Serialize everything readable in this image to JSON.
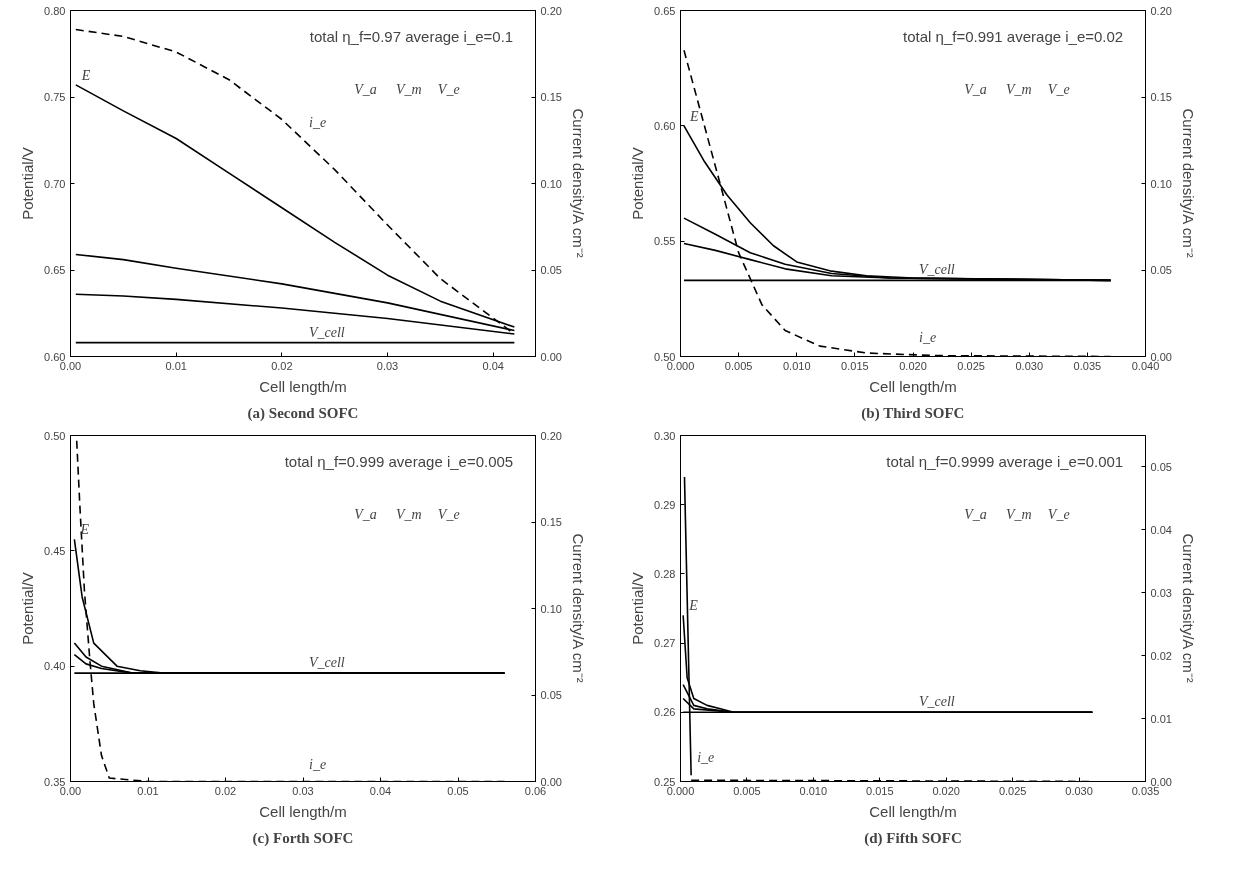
{
  "chart_data": [
    {
      "type": "line",
      "title": "(a) Second SOFC",
      "xlabel": "Cell length/m",
      "ylabel": "Potential/V",
      "y2label": "Current density/A cm⁻²",
      "grid": false,
      "annotations": [
        "total η_f=0.97   average i_e=0.1",
        "V_a",
        "V_m",
        "V_e"
      ],
      "xlim": [
        0,
        0.044
      ],
      "xticks": [
        {
          "value": 0,
          "label": "0.00"
        },
        {
          "value": 0.01,
          "label": "0.01"
        },
        {
          "value": 0.02,
          "label": "0.02"
        },
        {
          "value": 0.03,
          "label": "0.03"
        },
        {
          "value": 0.04,
          "label": "0.04"
        }
      ],
      "ylim": [
        0.6,
        0.8
      ],
      "yticks": [
        {
          "value": 0.6,
          "label": "0.60"
        },
        {
          "value": 0.65,
          "label": "0.65"
        },
        {
          "value": 0.7,
          "label": "0.70"
        },
        {
          "value": 0.75,
          "label": "0.75"
        },
        {
          "value": 0.8,
          "label": "0.80"
        }
      ],
      "y2lim": [
        0,
        0.2
      ],
      "y2ticks": [
        {
          "value": 0,
          "label": "0.00"
        },
        {
          "value": 0.05,
          "label": "0.05"
        },
        {
          "value": 0.1,
          "label": "0.10"
        },
        {
          "value": 0.15,
          "label": "0.15"
        },
        {
          "value": 0.2,
          "label": "0.20"
        }
      ],
      "series": [
        {
          "name": "E",
          "color": "#000000",
          "line_style": "solid",
          "x": [
            0.0005,
            0.005,
            0.01,
            0.015,
            0.02,
            0.025,
            0.03,
            0.035,
            0.042
          ],
          "values": [
            0.757,
            0.742,
            0.726,
            0.706,
            0.686,
            0.666,
            0.647,
            0.632,
            0.617
          ]
        },
        {
          "type": "line",
          "color": "#000000",
          "line_style": "solid",
          "x": [
            0.0005,
            0.005,
            0.01,
            0.02,
            0.03,
            0.042
          ],
          "values": [
            0.659,
            0.656,
            0.651,
            0.642,
            0.631,
            0.615
          ]
        },
        {
          "type": "line",
          "color": "#000000",
          "line_style": "solid",
          "x": [
            0.0005,
            0.005,
            0.01,
            0.02,
            0.03,
            0.042
          ],
          "values": [
            0.636,
            0.635,
            0.633,
            0.628,
            0.622,
            0.613
          ]
        },
        {
          "name": "V_cell",
          "color": "#000000",
          "line_style": "solid",
          "x": [
            0.0005,
            0.042
          ],
          "values": [
            0.608,
            0.608
          ]
        },
        {
          "name": "i_e",
          "color": "#000000",
          "line_style": "dashed",
          "axis": "y2",
          "x": [
            0.0005,
            0.005,
            0.01,
            0.015,
            0.02,
            0.025,
            0.03,
            0.035,
            0.042
          ],
          "values": [
            0.189,
            0.185,
            0.176,
            0.16,
            0.137,
            0.108,
            0.076,
            0.045,
            0.013
          ]
        }
      ]
    },
    {
      "type": "line",
      "title": "(b) Third SOFC",
      "xlabel": "Cell length/m",
      "ylabel": "Potential/V",
      "y2label": "Current density/A cm⁻²",
      "grid": false,
      "annotations": [
        "total η_f=0.991   average i_e=0.02",
        "V_a",
        "V_m",
        "V_e"
      ],
      "xlim": [
        0,
        0.04
      ],
      "xticks": [
        {
          "value": 0,
          "label": "0.000"
        },
        {
          "value": 0.005,
          "label": "0.005"
        },
        {
          "value": 0.01,
          "label": "0.010"
        },
        {
          "value": 0.015,
          "label": "0.015"
        },
        {
          "value": 0.02,
          "label": "0.020"
        },
        {
          "value": 0.025,
          "label": "0.025"
        },
        {
          "value": 0.03,
          "label": "0.030"
        },
        {
          "value": 0.035,
          "label": "0.035"
        },
        {
          "value": 0.04,
          "label": "0.040"
        }
      ],
      "ylim": [
        0.5,
        0.65
      ],
      "yticks": [
        {
          "value": 0.5,
          "label": "0.50"
        },
        {
          "value": 0.55,
          "label": "0.55"
        },
        {
          "value": 0.6,
          "label": "0.60"
        },
        {
          "value": 0.65,
          "label": "0.65"
        }
      ],
      "y2lim": [
        0,
        0.2
      ],
      "y2ticks": [
        {
          "value": 0,
          "label": "0.00"
        },
        {
          "value": 0.05,
          "label": "0.05"
        },
        {
          "value": 0.1,
          "label": "0.10"
        },
        {
          "value": 0.15,
          "label": "0.15"
        },
        {
          "value": 0.2,
          "label": "0.20"
        }
      ],
      "series": [
        {
          "name": "E",
          "color": "#000000",
          "line_style": "solid",
          "x": [
            0.0003,
            0.002,
            0.004,
            0.006,
            0.008,
            0.01,
            0.013,
            0.016,
            0.02,
            0.037
          ],
          "values": [
            0.6,
            0.585,
            0.57,
            0.558,
            0.548,
            0.541,
            0.537,
            0.535,
            0.534,
            0.533
          ]
        },
        {
          "type": "line",
          "color": "#000000",
          "line_style": "solid",
          "x": [
            0.0003,
            0.003,
            0.006,
            0.009,
            0.013,
            0.018,
            0.037
          ],
          "values": [
            0.56,
            0.553,
            0.545,
            0.54,
            0.536,
            0.534,
            0.533
          ]
        },
        {
          "type": "line",
          "color": "#000000",
          "line_style": "solid",
          "x": [
            0.0003,
            0.003,
            0.006,
            0.009,
            0.013,
            0.018,
            0.037
          ],
          "values": [
            0.549,
            0.546,
            0.542,
            0.538,
            0.535,
            0.534,
            0.533
          ]
        },
        {
          "name": "V_cell",
          "color": "#000000",
          "line_style": "solid",
          "x": [
            0.0003,
            0.037
          ],
          "values": [
            0.533,
            0.533
          ]
        },
        {
          "name": "i_e",
          "color": "#000000",
          "line_style": "dashed",
          "axis": "y2",
          "x": [
            0.0003,
            0.003,
            0.005,
            0.007,
            0.009,
            0.012,
            0.016,
            0.022,
            0.037
          ],
          "values": [
            0.177,
            0.11,
            0.06,
            0.03,
            0.015,
            0.006,
            0.002,
            0.0005,
            0
          ]
        }
      ]
    },
    {
      "type": "line",
      "title": "(c) Forth SOFC",
      "xlabel": "Cell length/m",
      "ylabel": "Potential/V",
      "y2label": "Current density/A cm⁻²",
      "grid": false,
      "annotations": [
        "total η_f=0.999   average i_e=0.005",
        "V_a",
        "V_m",
        "V_e"
      ],
      "xlim": [
        0,
        0.06
      ],
      "xticks": [
        {
          "value": 0,
          "label": "0.00"
        },
        {
          "value": 0.01,
          "label": "0.01"
        },
        {
          "value": 0.02,
          "label": "0.02"
        },
        {
          "value": 0.03,
          "label": "0.03"
        },
        {
          "value": 0.04,
          "label": "0.04"
        },
        {
          "value": 0.05,
          "label": "0.05"
        },
        {
          "value": 0.06,
          "label": "0.06"
        }
      ],
      "ylim": [
        0.35,
        0.5
      ],
      "yticks": [
        {
          "value": 0.35,
          "label": "0.35"
        },
        {
          "value": 0.4,
          "label": "0.40"
        },
        {
          "value": 0.45,
          "label": "0.45"
        },
        {
          "value": 0.5,
          "label": "0.50"
        }
      ],
      "y2lim": [
        0,
        0.2
      ],
      "y2ticks": [
        {
          "value": 0,
          "label": "0.00"
        },
        {
          "value": 0.05,
          "label": "0.05"
        },
        {
          "value": 0.1,
          "label": "0.10"
        },
        {
          "value": 0.15,
          "label": "0.15"
        },
        {
          "value": 0.2,
          "label": "0.20"
        }
      ],
      "series": [
        {
          "name": "E",
          "color": "#000000",
          "line_style": "solid",
          "x": [
            0.0005,
            0.0015,
            0.003,
            0.006,
            0.009,
            0.012,
            0.056
          ],
          "values": [
            0.455,
            0.43,
            0.41,
            0.4,
            0.398,
            0.397,
            0.397
          ]
        },
        {
          "type": "line",
          "color": "#000000",
          "line_style": "solid",
          "x": [
            0.0005,
            0.002,
            0.004,
            0.008,
            0.056
          ],
          "values": [
            0.41,
            0.404,
            0.4,
            0.397,
            0.397
          ]
        },
        {
          "type": "line",
          "color": "#000000",
          "line_style": "solid",
          "x": [
            0.0005,
            0.002,
            0.004,
            0.008,
            0.056
          ],
          "values": [
            0.405,
            0.401,
            0.399,
            0.397,
            0.397
          ]
        },
        {
          "name": "V_cell",
          "color": "#000000",
          "line_style": "solid",
          "x": [
            0.0005,
            0.056
          ],
          "values": [
            0.397,
            0.397
          ]
        },
        {
          "name": "i_e",
          "color": "#000000",
          "line_style": "dashed",
          "axis": "y2",
          "x": [
            0.0008,
            0.0012,
            0.0018,
            0.0025,
            0.003,
            0.004,
            0.005,
            0.01,
            0.056
          ],
          "values": [
            0.197,
            0.16,
            0.11,
            0.07,
            0.045,
            0.015,
            0.002,
            0,
            0
          ]
        }
      ]
    },
    {
      "type": "line",
      "title": "(d) Fifth SOFC",
      "xlabel": "Cell length/m",
      "ylabel": "Potential/V",
      "y2label": "Current density/A cm⁻²",
      "grid": false,
      "annotations": [
        "total η_f=0.9999   average i_e=0.001",
        "V_a",
        "V_m",
        "V_e"
      ],
      "xlim": [
        0,
        0.035
      ],
      "xticks": [
        {
          "value": 0,
          "label": "0.000"
        },
        {
          "value": 0.005,
          "label": "0.005"
        },
        {
          "value": 0.01,
          "label": "0.010"
        },
        {
          "value": 0.015,
          "label": "0.015"
        },
        {
          "value": 0.02,
          "label": "0.020"
        },
        {
          "value": 0.025,
          "label": "0.025"
        },
        {
          "value": 0.03,
          "label": "0.030"
        },
        {
          "value": 0.035,
          "label": "0.035"
        }
      ],
      "ylim": [
        0.25,
        0.3
      ],
      "yticks": [
        {
          "value": 0.25,
          "label": "0.25"
        },
        {
          "value": 0.26,
          "label": "0.26"
        },
        {
          "value": 0.27,
          "label": "0.27"
        },
        {
          "value": 0.28,
          "label": "0.28"
        },
        {
          "value": 0.29,
          "label": "0.29"
        },
        {
          "value": 0.3,
          "label": "0.30"
        }
      ],
      "y2lim": [
        0,
        0.055
      ],
      "y2ticks": [
        {
          "value": 0,
          "label": "0.00"
        },
        {
          "value": 0.01,
          "label": "0.01"
        },
        {
          "value": 0.02,
          "label": "0.02"
        },
        {
          "value": 0.03,
          "label": "0.03"
        },
        {
          "value": 0.04,
          "label": "0.04"
        },
        {
          "value": 0.05,
          "label": "0.05"
        }
      ],
      "series": [
        {
          "name": "E",
          "color": "#000000",
          "line_style": "solid",
          "x": [
            0.0002,
            0.0005,
            0.001,
            0.002,
            0.003,
            0.004,
            0.031
          ],
          "values": [
            0.274,
            0.265,
            0.262,
            0.261,
            0.2605,
            0.26,
            0.26
          ]
        },
        {
          "type": "line",
          "color": "#000000",
          "line_style": "solid",
          "x": [
            0.0002,
            0.001,
            0.002,
            0.004,
            0.031
          ],
          "values": [
            0.264,
            0.261,
            0.2605,
            0.26,
            0.26
          ]
        },
        {
          "type": "line",
          "color": "#000000",
          "line_style": "solid",
          "x": [
            0.0002,
            0.001,
            0.004,
            0.031
          ],
          "values": [
            0.262,
            0.2605,
            0.26,
            0.26
          ]
        },
        {
          "name": "V_cell",
          "color": "#000000",
          "line_style": "solid",
          "x": [
            0.0002,
            0.031
          ],
          "values": [
            0.26,
            0.26
          ]
        },
        {
          "name": "i_e",
          "color": "#000000",
          "line_style": "solid",
          "axis": "y2",
          "x": [
            0.0003,
            0.0008
          ],
          "values": [
            0.0484,
            0.001
          ]
        },
        {
          "type": "line",
          "color": "#000000",
          "line_style": "dashed",
          "axis": "y2",
          "x": [
            0.0008,
            0.031
          ],
          "values": [
            0.0002,
            0
          ]
        }
      ]
    }
  ]
}
